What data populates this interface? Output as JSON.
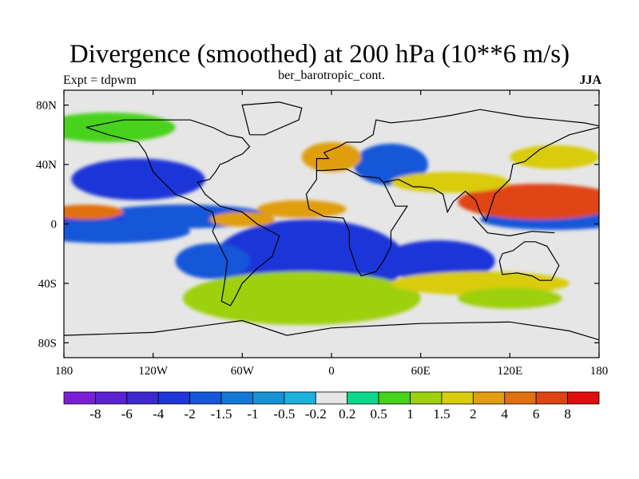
{
  "chart_data": {
    "type": "heatmap",
    "title": "Divergence (smoothed) at 200 hPa (10**6 m/s)",
    "subtitle": "ber_barotropic_cont.",
    "left_label": "Expt = tdpwm",
    "right_label": "JJA",
    "x_ticks": [
      "180",
      "120W",
      "60W",
      "0",
      "60E",
      "120E",
      "180"
    ],
    "y_ticks": [
      "80N",
      "40N",
      "0",
      "40S",
      "80S"
    ],
    "xlim": [
      -180,
      180
    ],
    "ylim": [
      -90,
      90
    ],
    "colorbar": {
      "levels": [
        "-8",
        "-6",
        "-4",
        "-2",
        "-1.5",
        "-1",
        "-0.5",
        "-0.2",
        "0.2",
        "0.5",
        "1",
        "1.5",
        "2",
        "4",
        "6",
        "8"
      ],
      "colors": [
        "#7a1fd6",
        "#5a22d0",
        "#3c28cc",
        "#1f36d8",
        "#1656d8",
        "#1478d6",
        "#1694d6",
        "#1cb2dc",
        "#e6e6e6",
        "#0ed88c",
        "#48d21a",
        "#9ed010",
        "#d8cc10",
        "#e09e10",
        "#e07010",
        "#e04412",
        "#e00e0e"
      ]
    },
    "regions": [
      {
        "lon": -130,
        "lat": 30,
        "w": 45,
        "h": 14,
        "value": "-4"
      },
      {
        "lon": -100,
        "lat": 5,
        "w": 60,
        "h": 8,
        "value": "-2"
      },
      {
        "lon": -165,
        "lat": 3,
        "w": 25,
        "h": 7,
        "value": "-4"
      },
      {
        "lon": 150,
        "lat": 3,
        "w": 50,
        "h": 7,
        "value": "-2"
      },
      {
        "lon": -150,
        "lat": -5,
        "w": 55,
        "h": 8,
        "value": "-2"
      },
      {
        "lon": -15,
        "lat": -25,
        "w": 65,
        "h": 28,
        "value": "-4"
      },
      {
        "lon": 72,
        "lat": -25,
        "w": 38,
        "h": 14,
        "value": "-4"
      },
      {
        "lon": -80,
        "lat": -25,
        "w": 25,
        "h": 12,
        "value": "-2"
      },
      {
        "lon": 40,
        "lat": 40,
        "w": 25,
        "h": 14,
        "value": "-2"
      },
      {
        "lon": 140,
        "lat": 15,
        "w": 55,
        "h": 12,
        "value": "6"
      },
      {
        "lon": -165,
        "lat": 8,
        "w": 25,
        "h": 5,
        "value": "4"
      },
      {
        "lon": -20,
        "lat": 10,
        "w": 30,
        "h": 6,
        "value": "2"
      },
      {
        "lon": -60,
        "lat": 3,
        "w": 22,
        "h": 5,
        "value": "2"
      },
      {
        "lon": 80,
        "lat": 28,
        "w": 40,
        "h": 7,
        "value": "1.5"
      },
      {
        "lon": 0,
        "lat": 45,
        "w": 20,
        "h": 10,
        "value": "2"
      },
      {
        "lon": -20,
        "lat": -50,
        "w": 80,
        "h": 18,
        "value": "1"
      },
      {
        "lon": 100,
        "lat": -40,
        "w": 60,
        "h": 8,
        "value": "1.5"
      },
      {
        "lon": 120,
        "lat": -50,
        "w": 35,
        "h": 7,
        "value": "1"
      },
      {
        "lon": 150,
        "lat": 45,
        "w": 30,
        "h": 8,
        "value": "1.5"
      },
      {
        "lon": -150,
        "lat": 65,
        "w": 45,
        "h": 10,
        "value": "0.5"
      }
    ]
  }
}
